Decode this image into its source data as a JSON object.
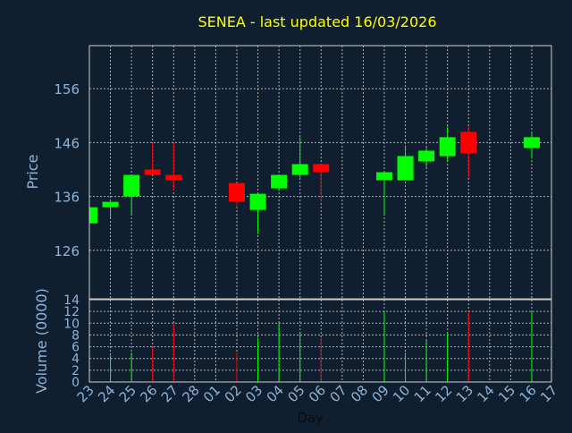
{
  "chart_data": {
    "type": "candlestick",
    "title": "SENEA - last updated 16/03/2026",
    "xlabel": "Day",
    "price_axis": {
      "label": "Price",
      "ticks": [
        126,
        136,
        146,
        156
      ],
      "range": [
        117,
        164
      ]
    },
    "volume_axis": {
      "label": "Volume (0000)",
      "ticks": [
        0,
        2,
        4,
        6,
        8,
        10,
        12,
        14
      ],
      "range": [
        0,
        14
      ]
    },
    "x_tick_labels": [
      "23",
      "24",
      "25",
      "26",
      "27",
      "28",
      "01",
      "02",
      "03",
      "04",
      "05",
      "06",
      "07",
      "08",
      "09",
      "10",
      "11",
      "12",
      "13",
      "14",
      "15",
      "16",
      "17"
    ],
    "grid": true,
    "colors": {
      "background": "#0f1f30",
      "up": "#00ff00",
      "down": "#ff0000",
      "title": "#ffff00",
      "axis_text": "#8fb4d8",
      "grid": "#b0b0b0",
      "frame": "#cccccc"
    },
    "candles": [
      {
        "day": "23",
        "open": 131.0,
        "high": 134.0,
        "low": 131.0,
        "close": 134.0,
        "volume": 0
      },
      {
        "day": "24",
        "open": 134.0,
        "high": 135.0,
        "low": 132.0,
        "close": 135.0,
        "volume": 4.5
      },
      {
        "day": "25",
        "open": 136.0,
        "high": 140.0,
        "low": 132.5,
        "close": 140.0,
        "volume": 5.0
      },
      {
        "day": "26",
        "open": 141.0,
        "high": 146.0,
        "low": 140.0,
        "close": 140.0,
        "volume": 6.0
      },
      {
        "day": "27",
        "open": 140.0,
        "high": 146.0,
        "low": 137.0,
        "close": 139.0,
        "volume": 10.0
      },
      {
        "day": "02",
        "open": 138.5,
        "high": 138.5,
        "low": 134.0,
        "close": 135.0,
        "volume": 5.0
      },
      {
        "day": "03",
        "open": 133.5,
        "high": 136.5,
        "low": 129.0,
        "close": 136.5,
        "volume": 7.5
      },
      {
        "day": "04",
        "open": 137.5,
        "high": 140.0,
        "low": 137.0,
        "close": 140.0,
        "volume": 10.0
      },
      {
        "day": "05",
        "open": 140.0,
        "high": 147.0,
        "low": 139.5,
        "close": 142.0,
        "volume": 8.5
      },
      {
        "day": "06",
        "open": 142.0,
        "high": 142.0,
        "low": 135.0,
        "close": 140.5,
        "volume": 7.5
      },
      {
        "day": "09",
        "open": 139.0,
        "high": 140.5,
        "low": 132.5,
        "close": 140.5,
        "volume": 12.0
      },
      {
        "day": "10",
        "open": 139.0,
        "high": 145.5,
        "low": 139.0,
        "close": 143.5,
        "volume": 5.0
      },
      {
        "day": "11",
        "open": 142.5,
        "high": 145.0,
        "low": 141.5,
        "close": 144.5,
        "volume": 7.0
      },
      {
        "day": "12",
        "open": 143.5,
        "high": 149.0,
        "low": 142.5,
        "close": 147.0,
        "volume": 8.5
      },
      {
        "day": "13",
        "open": 148.0,
        "high": 149.0,
        "low": 139.5,
        "close": 144.0,
        "volume": 12.0
      },
      {
        "day": "16",
        "open": 145.0,
        "high": 148.0,
        "low": 143.0,
        "close": 147.0,
        "volume": 12.0
      }
    ]
  }
}
